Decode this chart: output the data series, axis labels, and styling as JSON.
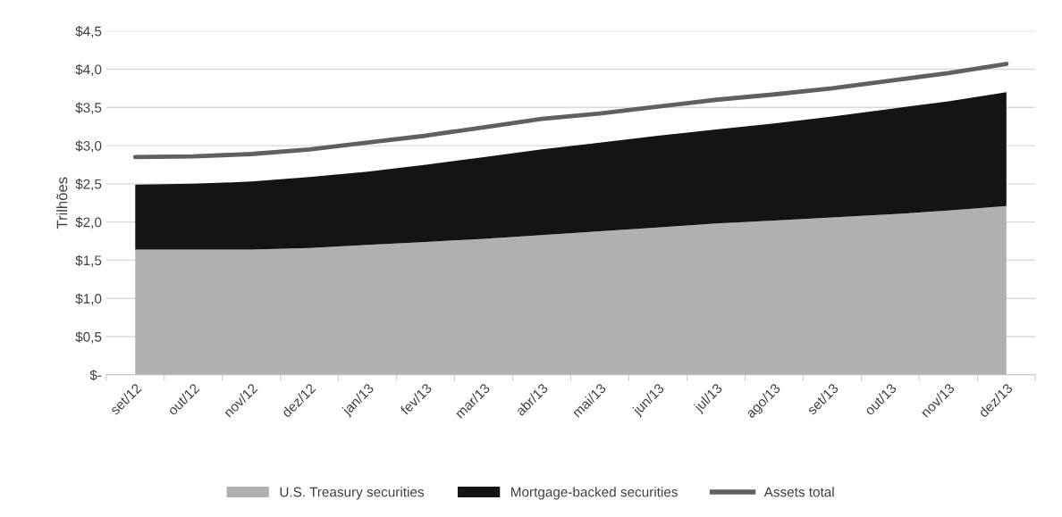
{
  "chart_data": {
    "type": "area",
    "stacked": true,
    "ylabel": "Trilhões",
    "categories": [
      "set/12",
      "out/12",
      "nov/12",
      "dez/12",
      "jan/13",
      "fev/13",
      "mar/13",
      "abr/13",
      "mai/13",
      "jun/13",
      "jul/13",
      "ago/13",
      "set/13",
      "out/13",
      "nov/13",
      "dez/13"
    ],
    "series": [
      {
        "name": "U.S. Treasury securities",
        "color": "#b0b0b0",
        "values": [
          1.64,
          1.64,
          1.64,
          1.66,
          1.7,
          1.74,
          1.78,
          1.83,
          1.88,
          1.93,
          1.98,
          2.02,
          2.06,
          2.1,
          2.15,
          2.21
        ]
      },
      {
        "name": "Mortgage-backed securities",
        "color": "#141414",
        "values": [
          0.85,
          0.86,
          0.89,
          0.93,
          0.96,
          1.01,
          1.07,
          1.12,
          1.16,
          1.2,
          1.23,
          1.27,
          1.32,
          1.38,
          1.43,
          1.49
        ]
      },
      {
        "name": "Assets total",
        "type": "line",
        "color": "#606060",
        "values": [
          2.85,
          2.86,
          2.89,
          2.95,
          3.04,
          3.13,
          3.24,
          3.35,
          3.42,
          3.51,
          3.6,
          3.67,
          3.75,
          3.85,
          3.95,
          4.07
        ]
      }
    ],
    "ylim": [
      0,
      4.5
    ],
    "yticks": [
      {
        "value": 0,
        "label": "$-"
      },
      {
        "value": 0.5,
        "label": "$0,5"
      },
      {
        "value": 1,
        "label": "$1,0"
      },
      {
        "value": 1.5,
        "label": "$1,5"
      },
      {
        "value": 2,
        "label": "$2,0"
      },
      {
        "value": 2.5,
        "label": "$2,5"
      },
      {
        "value": 3,
        "label": "$3,0"
      },
      {
        "value": 3.5,
        "label": "$3,5"
      },
      {
        "value": 4,
        "label": "$4,0"
      },
      {
        "value": 4.5,
        "label": "$4,5"
      }
    ],
    "grid": "y",
    "legend": "bottom"
  }
}
